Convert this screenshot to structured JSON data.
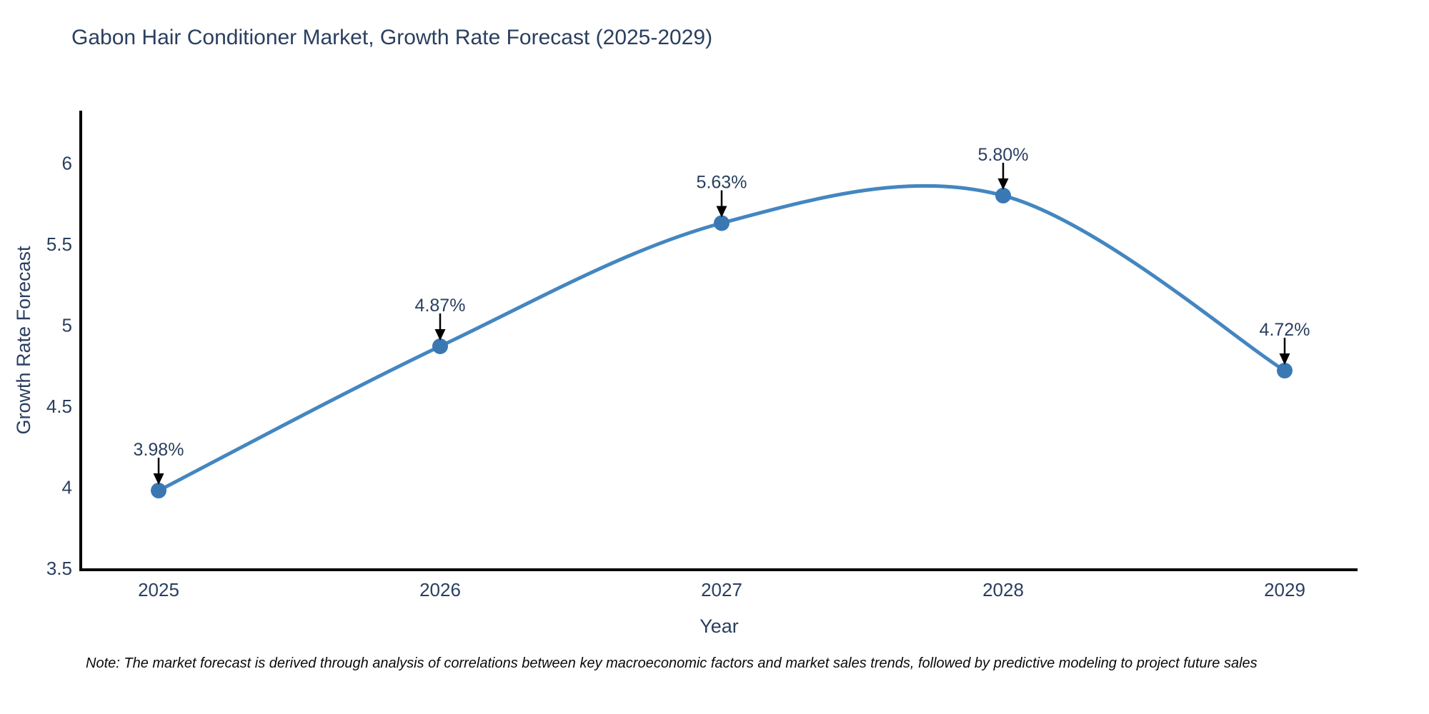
{
  "chart_data": {
    "type": "line",
    "title": "Gabon Hair Conditioner Market, Growth Rate Forecast (2025-2029)",
    "xlabel": "Year",
    "ylabel": "Growth Rate Forecast",
    "x": [
      2025,
      2026,
      2027,
      2028,
      2029
    ],
    "series": [
      {
        "name": "Growth Rate Forecast",
        "values": [
          3.98,
          4.87,
          5.63,
          5.8,
          4.72
        ],
        "point_labels": [
          "3.98%",
          "4.87%",
          "5.63%",
          "5.80%",
          "4.72%"
        ]
      }
    ],
    "yticks": [
      3.5,
      4,
      4.5,
      5,
      5.5,
      6
    ],
    "ylim": [
      3.5,
      6.33
    ],
    "line_shape": "spline",
    "grid": false,
    "legend": false,
    "annotations_style": "value label with down arrow to point",
    "colors": {
      "line": "#4486c0",
      "marker": "#3a78b4",
      "axis": "#000000",
      "text": "#2a3f5f",
      "arrow": "#000000",
      "note_text": "#0a0a0a",
      "background": "#ffffff"
    }
  },
  "note": "Note: The market forecast is derived through analysis of correlations between key macroeconomic factors and market sales trends, followed by predictive modeling to project future sales"
}
